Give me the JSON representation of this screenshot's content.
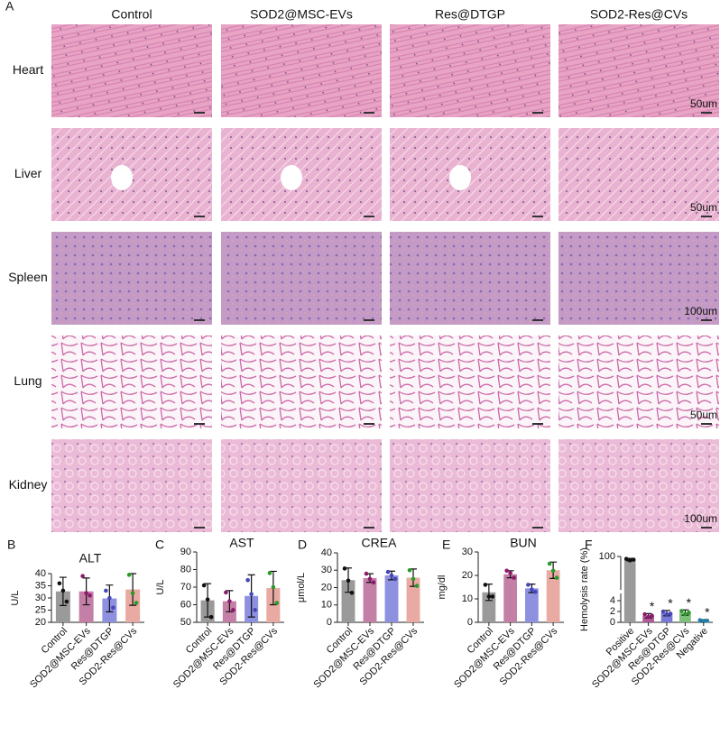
{
  "panel_a": {
    "letter": "A",
    "columns": [
      "Control",
      "SOD2@MSC-EVs",
      "Res@DTGP",
      "SOD2-Res@CVs"
    ],
    "rows": [
      "Heart",
      "Liver",
      "Spleen",
      "Lung",
      "Kidney"
    ],
    "scale_bars": [
      "50um",
      "50um",
      "100um",
      "50um",
      "100um"
    ]
  },
  "chart_data": [
    {
      "type": "bar",
      "letter": "B",
      "title": "ALT",
      "ylabel": "U/L",
      "categories": [
        "Control",
        "SOD2@MSC-EVs",
        "Res@DTGP",
        "SOD2-Res@CVs"
      ],
      "values": [
        32.7,
        32.7,
        29.8,
        33.5
      ],
      "errors": [
        5.8,
        5.5,
        5.5,
        6.5
      ],
      "points": [
        [
          36,
          33,
          28.5
        ],
        [
          39,
          32,
          31
        ],
        [
          33,
          30,
          26
        ],
        [
          39.5,
          32,
          28
        ]
      ],
      "colors": [
        "#9a9a9a",
        "#c47fa6",
        "#8e90e0",
        "#e8aaa2"
      ],
      "point_colors": [
        "#111111",
        "#8b1a6b",
        "#4646b8",
        "#2a9a2a"
      ],
      "ylim": [
        20,
        40
      ],
      "yticks": [
        20,
        25,
        30,
        35,
        40
      ]
    },
    {
      "type": "bar",
      "letter": "C",
      "title": "AST",
      "ylabel": "U/L",
      "categories": [
        "Control",
        "SOD2@MSC-EVs",
        "Res@DTGP",
        "SOD2-Res@CVs"
      ],
      "values": [
        62.5,
        62,
        65,
        69.5
      ],
      "errors": [
        9.5,
        6,
        12,
        9.5
      ],
      "points": [
        [
          71,
          63,
          53
        ],
        [
          67,
          62,
          57
        ],
        [
          74,
          66,
          57
        ],
        [
          78,
          70,
          61
        ]
      ],
      "colors": [
        "#9a9a9a",
        "#c47fa6",
        "#8e90e0",
        "#e8aaa2"
      ],
      "point_colors": [
        "#111111",
        "#8b1a6b",
        "#4646b8",
        "#2a9a2a"
      ],
      "ylim": [
        50,
        90
      ],
      "yticks": [
        50,
        60,
        70,
        80,
        90
      ]
    },
    {
      "type": "bar",
      "letter": "D",
      "title": "CREA",
      "ylabel": "μmol/L",
      "categories": [
        "Control",
        "SOD2@MSC-EVs",
        "Res@DTGP",
        "SOD2-Res@CVs"
      ],
      "values": [
        24.3,
        25.5,
        27,
        25.7
      ],
      "errors": [
        7,
        2.5,
        2.5,
        5
      ],
      "points": [
        [
          31,
          24,
          17
        ],
        [
          28,
          25,
          23
        ],
        [
          29,
          27,
          25
        ],
        [
          30,
          25,
          21
        ]
      ],
      "colors": [
        "#9a9a9a",
        "#c47fa6",
        "#8e90e0",
        "#e8aaa2"
      ],
      "point_colors": [
        "#111111",
        "#8b1a6b",
        "#4646b8",
        "#2a9a2a"
      ],
      "ylim": [
        0,
        40
      ],
      "yticks": [
        0,
        10,
        20,
        30,
        40
      ]
    },
    {
      "type": "bar",
      "letter": "E",
      "title": "BUN",
      "ylabel": "mg/dl",
      "categories": [
        "Control",
        "SOD2@MSC-EVs",
        "Res@DTGP",
        "SOD2-Res@CVs"
      ],
      "values": [
        12.8,
        20.5,
        14.5,
        22.2
      ],
      "errors": [
        3.5,
        1.5,
        1.8,
        3.5
      ],
      "points": [
        [
          16,
          11,
          11
        ],
        [
          22,
          21,
          19
        ],
        [
          16,
          14,
          13
        ],
        [
          25,
          22,
          19
        ]
      ],
      "colors": [
        "#9a9a9a",
        "#c47fa6",
        "#8e90e0",
        "#e8aaa2"
      ],
      "point_colors": [
        "#111111",
        "#8b1a6b",
        "#4646b8",
        "#2a9a2a"
      ],
      "ylim": [
        0,
        30
      ],
      "yticks": [
        0,
        10,
        20,
        30
      ]
    },
    {
      "type": "bar",
      "letter": "F",
      "ylabel": "Hemolysis rate (%)",
      "categories": [
        "Positive",
        "SOD2@MSC-EVs",
        "Res@DTGP",
        "SOD2-Res@CVs",
        "Negative"
      ],
      "values": [
        98,
        1.2,
        1.7,
        1.8,
        0.3
      ],
      "errors": [
        0.8,
        0.4,
        0.5,
        0.5,
        0.2
      ],
      "points": [
        [
          98.5,
          97.5,
          98
        ],
        [
          1.5,
          1.0,
          1.2
        ],
        [
          2.0,
          1.5,
          1.6
        ],
        [
          2.1,
          1.5,
          1.8
        ],
        [
          0.4,
          0.2,
          0.3
        ]
      ],
      "colors": [
        "#9a9a9a",
        "#b05a9a",
        "#7a7ad6",
        "#7cc07c",
        "#7ac2dc"
      ],
      "point_colors": [
        "#111111",
        "#8b1a6b",
        "#4646b8",
        "#2a9a2a",
        "#1f7fa8"
      ],
      "value_annotations": [
        null,
        "*",
        "*",
        "*",
        "*"
      ],
      "ylim": [
        0,
        100
      ],
      "axis_break": [
        5,
        80
      ],
      "yticks": [
        0,
        2,
        4,
        100
      ]
    }
  ]
}
